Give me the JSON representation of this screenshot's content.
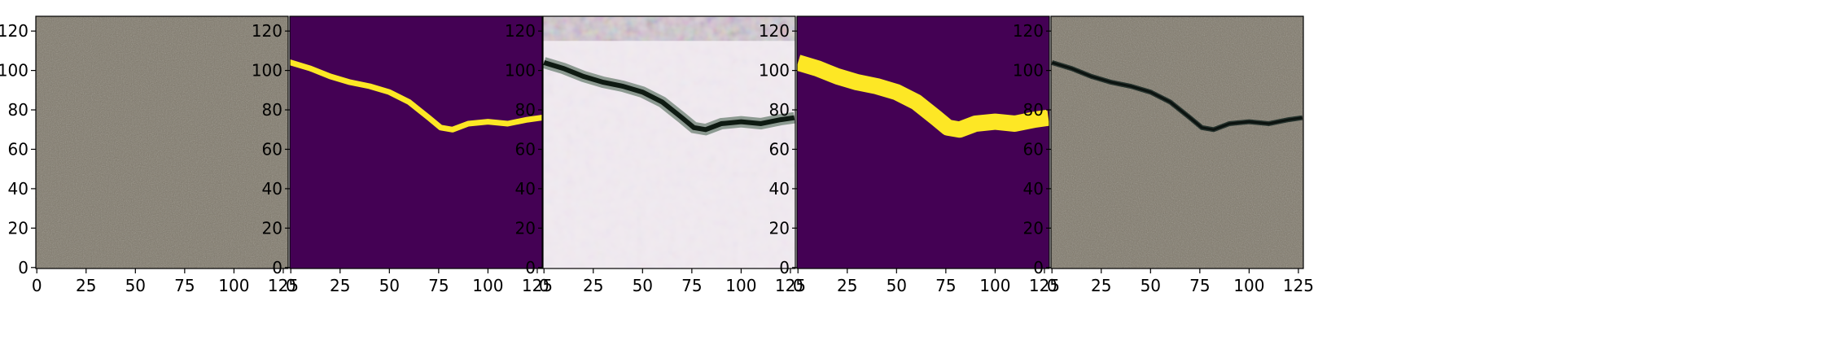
{
  "figure": {
    "panels": [
      {
        "name": "input-photo",
        "kind": "photo_plain"
      },
      {
        "name": "ground-truth-mask",
        "kind": "mask_jagged"
      },
      {
        "name": "generated-texture",
        "kind": "texture"
      },
      {
        "name": "predicted-mask",
        "kind": "mask_smooth"
      },
      {
        "name": "crack-composite",
        "kind": "photo_crack"
      }
    ],
    "axes": {
      "y_ticks": [
        "0",
        "20",
        "40",
        "60",
        "80",
        "100",
        "120"
      ],
      "x_ticks": [
        "0",
        "25",
        "50",
        "75",
        "100",
        "125"
      ],
      "xlim": [
        -0.5,
        127.5
      ],
      "ylim": [
        127.5,
        -0.5
      ]
    },
    "colors": {
      "mask_background": "#440154",
      "mask_foreground": "#fde725",
      "photo_base": "#7a7468"
    },
    "crack_path": [
      [
        0,
        104
      ],
      [
        10,
        101
      ],
      [
        20,
        97
      ],
      [
        30,
        94
      ],
      [
        40,
        92
      ],
      [
        50,
        89
      ],
      [
        60,
        84
      ],
      [
        70,
        76
      ],
      [
        76,
        71
      ],
      [
        82,
        70
      ],
      [
        90,
        73
      ],
      [
        100,
        74
      ],
      [
        110,
        73
      ],
      [
        120,
        75
      ],
      [
        127,
        76
      ]
    ]
  }
}
